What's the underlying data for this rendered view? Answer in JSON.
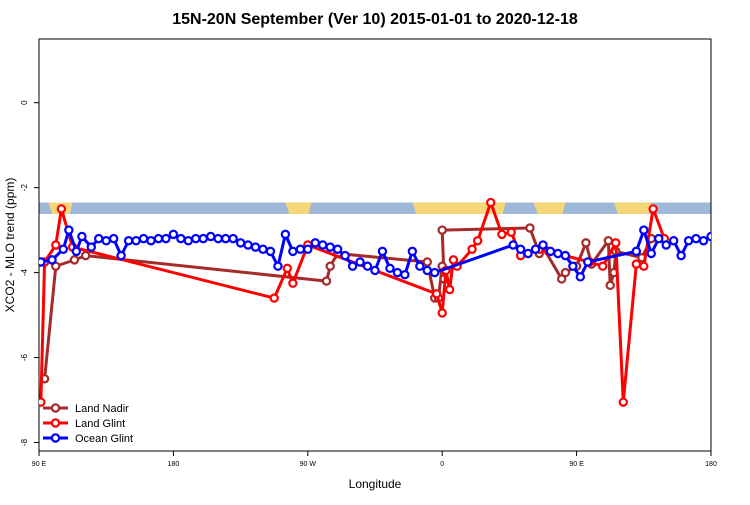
{
  "chart_data": {
    "type": "line",
    "title": "15N-20N September (Ver 10)   2015-01-01 to 2020-12-18",
    "xlabel": "Longitude",
    "ylabel": "XCO2 - MLO trend (ppm)",
    "xlim": [
      90,
      450
    ],
    "ylim": [
      -8.2,
      1.5
    ],
    "x_ticks": [
      {
        "value": 90,
        "label": "90 E"
      },
      {
        "value": 162,
        "label": "180"
      },
      {
        "value": 234,
        "label": "90 W"
      },
      {
        "value": 306,
        "label": "0"
      },
      {
        "value": 378,
        "label": "90 E"
      },
      {
        "value": 450,
        "label": "180"
      }
    ],
    "y_ticks": [
      {
        "value": 0,
        "label": "0"
      },
      {
        "value": -2,
        "label": "-2"
      },
      {
        "value": -4,
        "label": "-4"
      },
      {
        "value": -6,
        "label": "-6"
      },
      {
        "value": -8,
        "label": "-8"
      }
    ],
    "map_band": {
      "y_top": -2.35,
      "y_bottom": -2.62,
      "ocean_color": "#9fb8d8",
      "land_color": "#f5d77a"
    },
    "legend": {
      "position": "bottom-left"
    },
    "series": [
      {
        "name": "Land Nadir",
        "color": "#a52a2a",
        "points": [
          [
            93,
            -6.5
          ],
          [
            99,
            -3.85
          ],
          [
            109,
            -3.7
          ],
          [
            115,
            -3.6
          ],
          [
            244,
            -4.2
          ],
          [
            246,
            -3.85
          ],
          [
            250,
            -3.55
          ],
          [
            298,
            -3.75
          ],
          [
            302,
            -4.6
          ],
          [
            304,
            -4.6
          ],
          [
            306,
            -3.85
          ],
          [
            307,
            -4.15
          ],
          [
            306,
            -3.0
          ],
          [
            353,
            -2.95
          ],
          [
            358,
            -3.55
          ],
          [
            360,
            -3.4
          ],
          [
            370,
            -4.15
          ],
          [
            372,
            -4.0
          ],
          [
            378,
            -3.85
          ],
          [
            383,
            -3.3
          ],
          [
            386,
            -3.8
          ],
          [
            395,
            -3.25
          ],
          [
            396,
            -4.3
          ],
          [
            398,
            -4.0
          ],
          [
            399,
            -3.5
          ],
          [
            413,
            -3.65
          ],
          [
            418,
            -3.2
          ]
        ]
      },
      {
        "name": "Land Glint",
        "color": "#ff0000",
        "points": [
          [
            91,
            -7.05
          ],
          [
            93,
            -3.75
          ],
          [
            99,
            -3.35
          ],
          [
            102,
            -2.5
          ],
          [
            108,
            -3.4
          ],
          [
            216,
            -4.6
          ],
          [
            223,
            -3.9
          ],
          [
            226,
            -4.25
          ],
          [
            234,
            -3.35
          ],
          [
            303,
            -4.5
          ],
          [
            306,
            -4.95
          ],
          [
            308,
            -3.95
          ],
          [
            310,
            -4.4
          ],
          [
            312,
            -3.7
          ],
          [
            314,
            -3.85
          ],
          [
            322,
            -3.45
          ],
          [
            325,
            -3.25
          ],
          [
            332,
            -2.35
          ],
          [
            338,
            -3.1
          ],
          [
            343,
            -3.05
          ],
          [
            348,
            -3.6
          ],
          [
            358,
            -3.45
          ],
          [
            363,
            -3.5
          ],
          [
            385,
            -3.75
          ],
          [
            392,
            -3.85
          ],
          [
            399,
            -3.3
          ],
          [
            403,
            -7.05
          ],
          [
            410,
            -3.8
          ],
          [
            414,
            -3.85
          ],
          [
            419,
            -2.5
          ],
          [
            425,
            -3.2
          ]
        ]
      },
      {
        "name": "Ocean Glint",
        "color": "#0000ff",
        "points": [
          [
            91,
            -3.75
          ],
          [
            97,
            -3.7
          ],
          [
            103,
            -3.45
          ],
          [
            106,
            -3.0
          ],
          [
            110,
            -3.5
          ],
          [
            113,
            -3.15
          ],
          [
            118,
            -3.4
          ],
          [
            122,
            -3.2
          ],
          [
            126,
            -3.25
          ],
          [
            130,
            -3.2
          ],
          [
            134,
            -3.6
          ],
          [
            138,
            -3.25
          ],
          [
            142,
            -3.25
          ],
          [
            146,
            -3.2
          ],
          [
            150,
            -3.25
          ],
          [
            154,
            -3.2
          ],
          [
            158,
            -3.2
          ],
          [
            162,
            -3.1
          ],
          [
            166,
            -3.2
          ],
          [
            170,
            -3.25
          ],
          [
            174,
            -3.2
          ],
          [
            178,
            -3.2
          ],
          [
            182,
            -3.15
          ],
          [
            186,
            -3.2
          ],
          [
            190,
            -3.2
          ],
          [
            194,
            -3.2
          ],
          [
            198,
            -3.3
          ],
          [
            202,
            -3.35
          ],
          [
            206,
            -3.4
          ],
          [
            210,
            -3.45
          ],
          [
            214,
            -3.5
          ],
          [
            218,
            -3.85
          ],
          [
            222,
            -3.1
          ],
          [
            226,
            -3.5
          ],
          [
            230,
            -3.45
          ],
          [
            234,
            -3.45
          ],
          [
            238,
            -3.3
          ],
          [
            242,
            -3.35
          ],
          [
            246,
            -3.4
          ],
          [
            250,
            -3.45
          ],
          [
            254,
            -3.6
          ],
          [
            258,
            -3.85
          ],
          [
            262,
            -3.75
          ],
          [
            266,
            -3.85
          ],
          [
            270,
            -3.95
          ],
          [
            274,
            -3.5
          ],
          [
            278,
            -3.9
          ],
          [
            282,
            -4.0
          ],
          [
            286,
            -4.05
          ],
          [
            290,
            -3.5
          ],
          [
            294,
            -3.85
          ],
          [
            298,
            -3.95
          ],
          [
            302,
            -4.0
          ],
          [
            344,
            -3.35
          ],
          [
            348,
            -3.45
          ],
          [
            352,
            -3.55
          ],
          [
            356,
            -3.45
          ],
          [
            360,
            -3.35
          ],
          [
            364,
            -3.5
          ],
          [
            368,
            -3.55
          ],
          [
            372,
            -3.6
          ],
          [
            376,
            -3.85
          ],
          [
            380,
            -4.1
          ],
          [
            384,
            -3.75
          ],
          [
            410,
            -3.5
          ],
          [
            414,
            -3.0
          ],
          [
            418,
            -3.55
          ],
          [
            422,
            -3.2
          ],
          [
            426,
            -3.35
          ],
          [
            430,
            -3.25
          ],
          [
            434,
            -3.6
          ],
          [
            438,
            -3.25
          ],
          [
            442,
            -3.2
          ],
          [
            446,
            -3.25
          ],
          [
            450,
            -3.15
          ]
        ]
      }
    ]
  }
}
